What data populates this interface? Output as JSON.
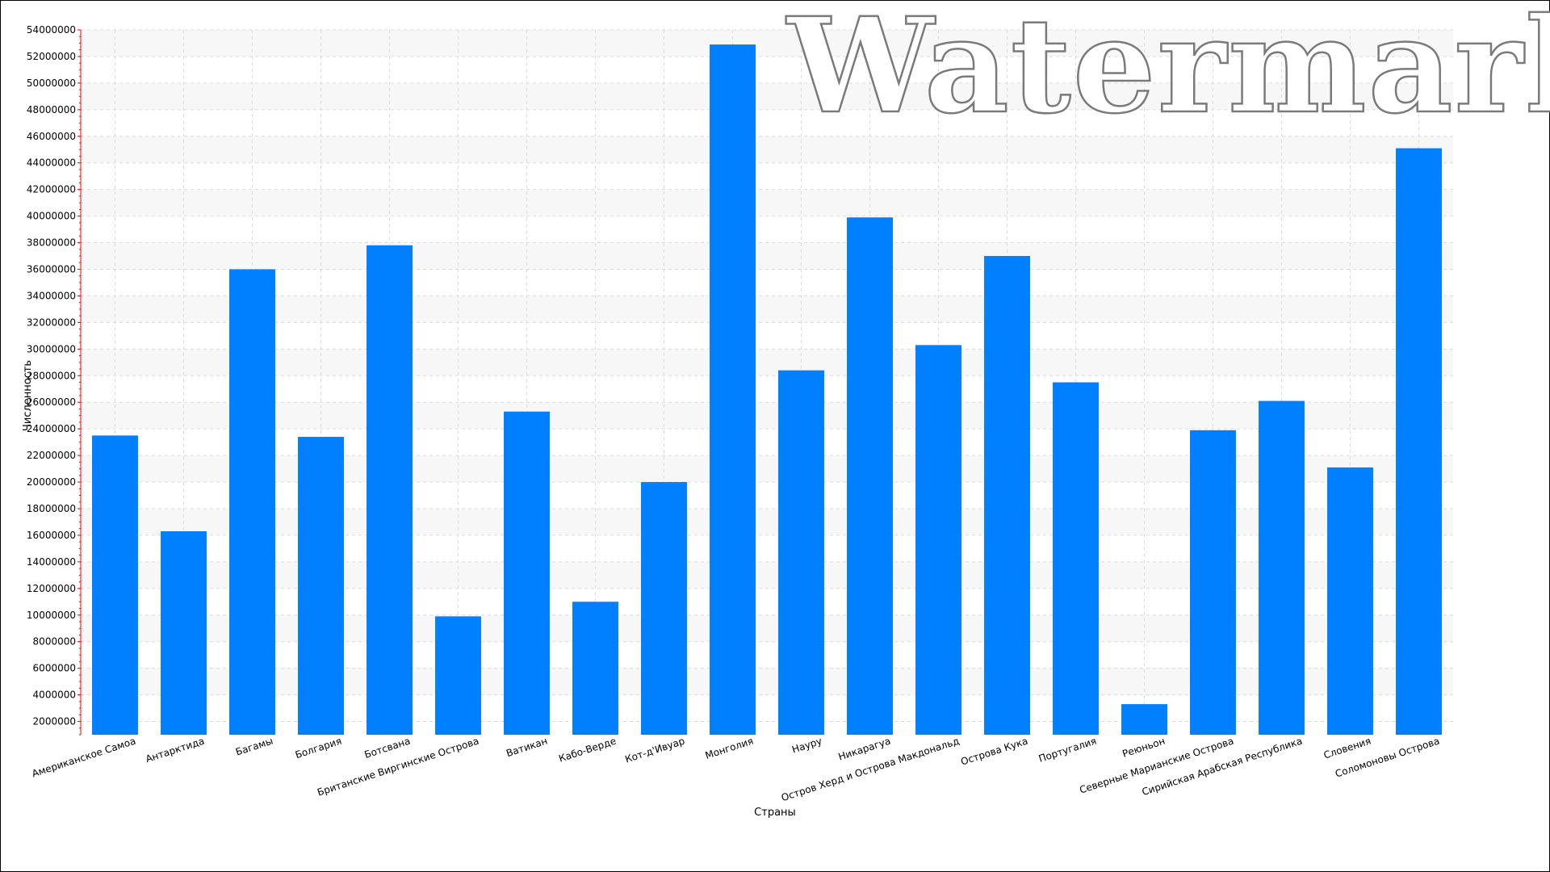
{
  "chart_data": {
    "type": "bar",
    "title": "",
    "xlabel": "Страны",
    "ylabel": "Численность",
    "watermark": "Watermark",
    "categories": [
      "Американское Самоа",
      "Антарктида",
      "Багамы",
      "Болгария",
      "Ботсвана",
      "Британские Виргинские Острова",
      "Ватикан",
      "Кабо-Верде",
      "Кот-д'Ивуар",
      "Монголия",
      "Науру",
      "Никарагуа",
      "Остров Херд и Острова Макдональд",
      "Острова Кука",
      "Португалия",
      "Реюньон",
      "Северные Марианские Острова",
      "Сирийская Арабская Республика",
      "Словения",
      "Соломоновы Острова"
    ],
    "values": [
      23500000,
      16300000,
      36000000,
      23400000,
      37800000,
      9900000,
      25300000,
      11000000,
      20000000,
      52900000,
      28400000,
      39900000,
      30300000,
      37000000,
      27500000,
      3300000,
      23900000,
      26100000,
      21100000,
      45100000
    ],
    "ylim": [
      1000000,
      54000000
    ],
    "yticks": [
      2000000,
      4000000,
      6000000,
      8000000,
      10000000,
      12000000,
      14000000,
      16000000,
      18000000,
      20000000,
      22000000,
      24000000,
      26000000,
      28000000,
      30000000,
      32000000,
      34000000,
      36000000,
      38000000,
      40000000,
      42000000,
      44000000,
      46000000,
      48000000,
      50000000,
      52000000,
      54000000
    ],
    "grid": true,
    "legend": "none",
    "colors": {
      "bar": "#0080ff",
      "band": "#f7f7f7",
      "grid": "#dcdcdc",
      "axis_ticks": "#ff0000"
    }
  }
}
